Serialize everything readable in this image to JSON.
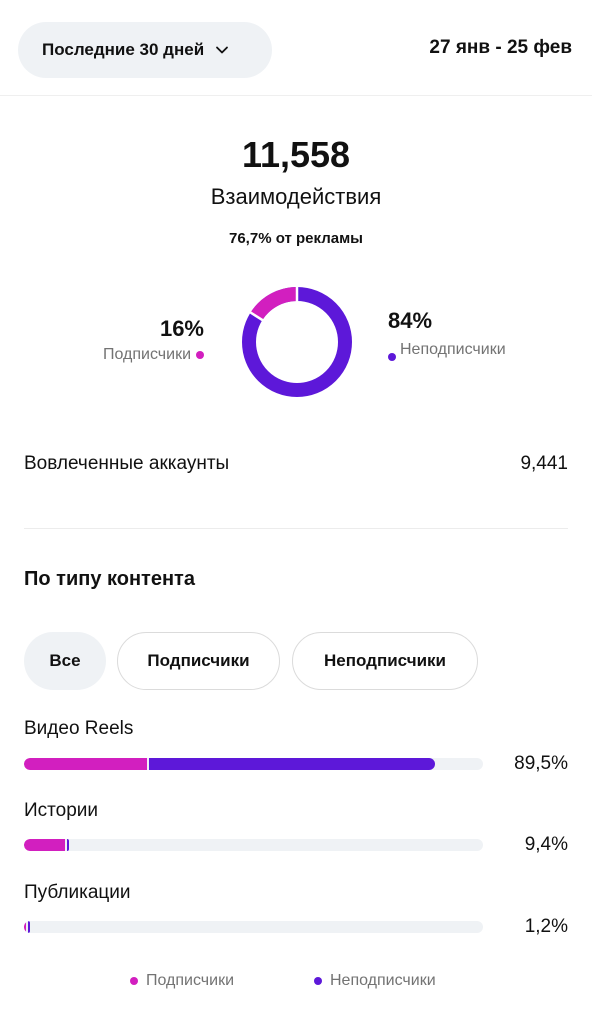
{
  "header": {
    "period_label": "Последние 30 дней",
    "date_range": "27 янв - 25 фев"
  },
  "summary": {
    "total": "11,558",
    "label": "Взаимодействия",
    "ads_note": "76,7% от рекламы"
  },
  "donut": {
    "followers_pct": "16%",
    "followers_label": "Подписчики",
    "followers_value": 0.16,
    "nonfollowers_pct": "84%",
    "nonfollowers_label": "Неподписчики",
    "nonfollowers_value": 0.84
  },
  "accounts": {
    "label": "Вовлеченные аккаунты",
    "value": "9,441"
  },
  "content_section": {
    "title": "По типу контента",
    "chips": [
      "Все",
      "Подписчики",
      "Неподписчики"
    ],
    "items": [
      {
        "label": "Видео Reels",
        "pct": "89,5%",
        "total": 0.895,
        "followers_share": 0.3
      },
      {
        "label": "Истории",
        "pct": "9,4%",
        "total": 0.094,
        "followers_share": 0.94
      },
      {
        "label": "Публикации",
        "pct": "1,2%",
        "total": 0.012,
        "followers_share": 0.4
      }
    ]
  },
  "legend": {
    "followers": "Подписчики",
    "nonfollowers": "Неподписчики"
  },
  "colors": {
    "followers": "#d21fbf",
    "nonfollowers": "#5d18d9",
    "track": "#eff2f5"
  }
}
